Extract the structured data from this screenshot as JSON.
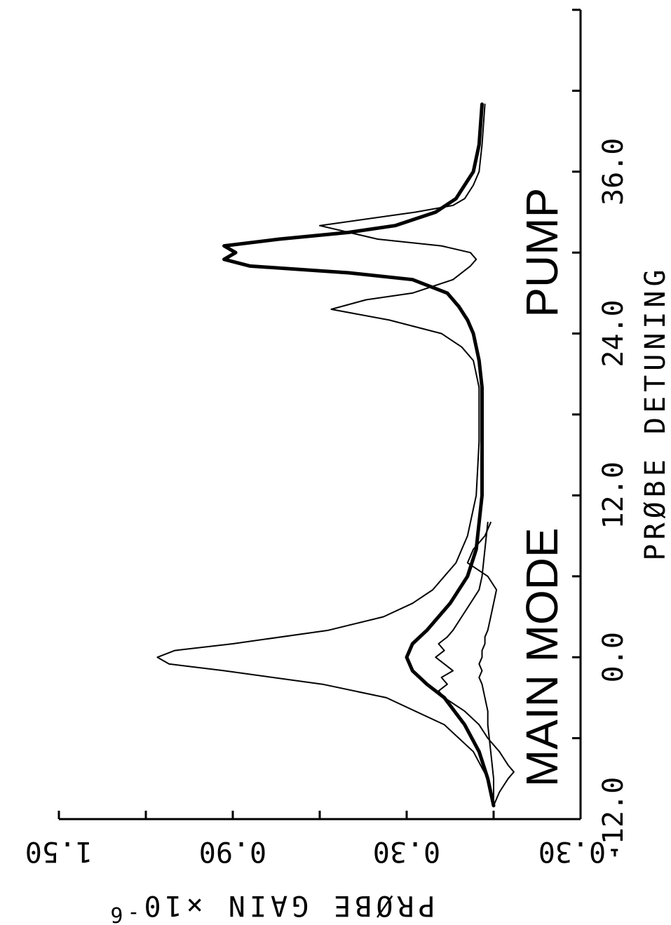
{
  "chart_data": {
    "type": "line",
    "title": "",
    "xlabel": "PRØBE DETUNING",
    "ylabel": "PRØBE GAIN ×10",
    "ylabel_exponent": "-6",
    "xlim": [
      -12,
      48
    ],
    "ylim": [
      -0.3,
      1.5
    ],
    "x_ticks": [
      -12,
      -6,
      0,
      6,
      12,
      18,
      24,
      30,
      36,
      42,
      48
    ],
    "x_tick_labels": [
      {
        "value": -12,
        "text": "-12.0"
      },
      {
        "value": 0,
        "text": "0.0"
      },
      {
        "value": 12,
        "text": "12.0"
      },
      {
        "value": 24,
        "text": "24.0"
      },
      {
        "value": 36,
        "text": "36.0"
      }
    ],
    "y_ticks": [
      -0.3,
      0.0,
      0.3,
      0.6,
      0.9,
      1.2,
      1.5
    ],
    "y_tick_labels": [
      {
        "value": -0.3,
        "text": "-0.30"
      },
      {
        "value": 0.3,
        "text": "0.30"
      },
      {
        "value": 0.9,
        "text": "0.90"
      },
      {
        "value": 1.5,
        "text": "1.50"
      }
    ],
    "grid": false,
    "annotations": [
      {
        "text": "MAIN MODE",
        "x": 0,
        "y": -0.22
      },
      {
        "text": "PUMP",
        "x": 30,
        "y": -0.22
      }
    ],
    "series": [
      {
        "style": "thin",
        "x": [
          -11,
          -9,
          -7,
          -5,
          -3,
          -2,
          -1,
          -0.5,
          0,
          0.5,
          1,
          2,
          3,
          4,
          5,
          6,
          7,
          9,
          12,
          16,
          20,
          22,
          23,
          24,
          25,
          25.8,
          26.5,
          27,
          28,
          29,
          29.5,
          30,
          30.5,
          31,
          32,
          33,
          33.5,
          34,
          35,
          36,
          38,
          41
        ],
        "y": [
          0.0,
          0.02,
          0.07,
          0.17,
          0.37,
          0.59,
          0.93,
          1.12,
          1.16,
          1.1,
          0.9,
          0.57,
          0.38,
          0.28,
          0.21,
          0.17,
          0.13,
          0.09,
          0.06,
          0.05,
          0.05,
          0.07,
          0.11,
          0.18,
          0.36,
          0.56,
          0.44,
          0.28,
          0.14,
          0.08,
          0.06,
          0.08,
          0.18,
          0.4,
          0.6,
          0.27,
          0.14,
          0.1,
          0.07,
          0.05,
          0.04,
          0.03
        ]
      },
      {
        "style": "thick",
        "x": [
          -11,
          -9,
          -7,
          -5,
          -3,
          -2,
          -1,
          0,
          1,
          2,
          4,
          6,
          8,
          12,
          16,
          20,
          22,
          24,
          25,
          26,
          27,
          28,
          28.5,
          29,
          29.5,
          30,
          30.5,
          31,
          31.5,
          32,
          33,
          34,
          35,
          36,
          38,
          41
        ],
        "y": [
          0.0,
          0.02,
          0.05,
          0.1,
          0.17,
          0.23,
          0.28,
          0.3,
          0.28,
          0.23,
          0.15,
          0.09,
          0.06,
          0.04,
          0.04,
          0.04,
          0.05,
          0.07,
          0.09,
          0.12,
          0.16,
          0.28,
          0.5,
          0.84,
          0.93,
          0.89,
          0.93,
          0.74,
          0.5,
          0.34,
          0.2,
          0.13,
          0.1,
          0.07,
          0.05,
          0.04
        ]
      },
      {
        "style": "thin",
        "x": [
          -11,
          -10,
          -9,
          -8.5,
          -8,
          -7,
          -6,
          -5,
          -4,
          -3,
          -2.5,
          -2,
          -1.5,
          -1,
          -0.5,
          0,
          0.5,
          1,
          1.5,
          2,
          3,
          4,
          5,
          6,
          8,
          10
        ],
        "y": [
          0.0,
          -0.02,
          -0.05,
          -0.07,
          -0.05,
          -0.02,
          0.02,
          0.05,
          0.1,
          0.17,
          0.19,
          0.16,
          0.18,
          0.14,
          0.17,
          0.2,
          0.17,
          0.19,
          0.16,
          0.14,
          0.11,
          0.08,
          0.05,
          0.04,
          0.03,
          0.02
        ]
      },
      {
        "style": "thin",
        "x": [
          -11,
          -9,
          -7,
          -5,
          -4,
          -3,
          -2,
          -1.5,
          -1,
          -0.5,
          0,
          0.5,
          1,
          1.5,
          2,
          3,
          4,
          5,
          6,
          7,
          8,
          9,
          10
        ],
        "y": [
          0.0,
          0.0,
          0.01,
          0.02,
          0.02,
          0.03,
          0.04,
          0.05,
          0.04,
          0.05,
          0.04,
          0.04,
          0.03,
          0.03,
          0.02,
          0.01,
          0.0,
          -0.01,
          0.02,
          0.09,
          0.07,
          0.03,
          0.01
        ]
      }
    ]
  }
}
